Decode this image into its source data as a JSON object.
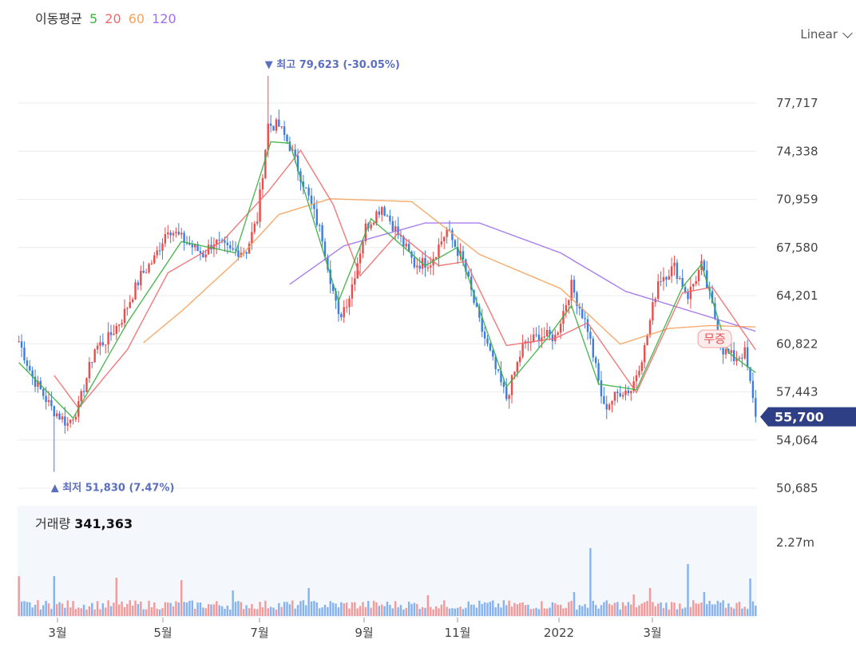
{
  "legend": {
    "title": "이동평균",
    "ma5": "5",
    "ma20": "20",
    "ma60": "60",
    "ma120": "120",
    "colors": {
      "ma5": "#3cb043",
      "ma20": "#f06a6a",
      "ma60": "#f5a25d",
      "ma120": "#a070ee"
    }
  },
  "scale_select": {
    "label": "Linear",
    "icon": "chevron-down-icon"
  },
  "volume_panel": {
    "label": "거래량",
    "value": "341,363",
    "ytick": "2.27m"
  },
  "chart_data": {
    "type": "candlestick",
    "ylim": [
      50685,
      79623
    ],
    "yticks": [
      "77,717",
      "74,338",
      "70,959",
      "67,580",
      "64,201",
      "60,822",
      "57,443",
      "54,064",
      "50,685"
    ],
    "ytick_values": [
      77717,
      74338,
      70959,
      67580,
      64201,
      60822,
      57443,
      54064,
      50685
    ],
    "xticks": [
      "3월",
      "5월",
      "7월",
      "9월",
      "11월",
      "2022",
      "3월"
    ],
    "high_annotation": {
      "label": "▼ 최고 79,623 (-30.05%)",
      "value": 79623
    },
    "low_annotation": {
      "label": "▲ 최저 51,830 (7.47%)",
      "value": 51830
    },
    "current_price": {
      "label": "55,700",
      "value": 55700
    },
    "event_badge": "무증",
    "close_keypoints": [
      [
        0,
        61000
      ],
      [
        5,
        58500
      ],
      [
        12,
        56300
      ],
      [
        18,
        55200
      ],
      [
        22,
        56400
      ],
      [
        28,
        60500
      ],
      [
        33,
        61200
      ],
      [
        38,
        62600
      ],
      [
        45,
        65600
      ],
      [
        50,
        66800
      ],
      [
        55,
        69000
      ],
      [
        60,
        68200
      ],
      [
        68,
        67100
      ],
      [
        72,
        68000
      ],
      [
        78,
        67300
      ],
      [
        84,
        67400
      ],
      [
        88,
        69600
      ],
      [
        92,
        76200
      ],
      [
        96,
        76100
      ],
      [
        100,
        74700
      ],
      [
        106,
        71600
      ],
      [
        112,
        68300
      ],
      [
        118,
        62600
      ],
      [
        122,
        64200
      ],
      [
        128,
        69000
      ],
      [
        134,
        70500
      ],
      [
        140,
        68500
      ],
      [
        146,
        66400
      ],
      [
        152,
        66600
      ],
      [
        158,
        68800
      ],
      [
        164,
        66600
      ],
      [
        170,
        62300
      ],
      [
        176,
        59000
      ],
      [
        180,
        57000
      ],
      [
        186,
        60600
      ],
      [
        192,
        61400
      ],
      [
        198,
        61300
      ],
      [
        204,
        64900
      ],
      [
        210,
        61900
      ],
      [
        216,
        56300
      ],
      [
        222,
        57500
      ],
      [
        226,
        57600
      ],
      [
        231,
        60500
      ],
      [
        236,
        65300
      ],
      [
        242,
        66200
      ],
      [
        247,
        64200
      ],
      [
        252,
        66300
      ],
      [
        256,
        63400
      ],
      [
        260,
        60400
      ],
      [
        264,
        59800
      ],
      [
        268,
        60200
      ],
      [
        272,
        55700
      ]
    ],
    "ma_lines": {
      "ma5": [
        [
          0,
          59500
        ],
        [
          20,
          55600
        ],
        [
          40,
          62300
        ],
        [
          60,
          68000
        ],
        [
          80,
          67200
        ],
        [
          93,
          75000
        ],
        [
          100,
          74900
        ],
        [
          118,
          63800
        ],
        [
          130,
          69600
        ],
        [
          150,
          66300
        ],
        [
          162,
          67600
        ],
        [
          180,
          57800
        ],
        [
          195,
          61200
        ],
        [
          204,
          63500
        ],
        [
          214,
          58000
        ],
        [
          228,
          57600
        ],
        [
          245,
          64800
        ],
        [
          252,
          66400
        ],
        [
          262,
          60200
        ],
        [
          272,
          58800
        ]
      ],
      "ma20": [
        [
          13,
          58600
        ],
        [
          22,
          56300
        ],
        [
          40,
          60400
        ],
        [
          55,
          65800
        ],
        [
          75,
          68000
        ],
        [
          92,
          71500
        ],
        [
          104,
          74400
        ],
        [
          116,
          70600
        ],
        [
          126,
          65600
        ],
        [
          140,
          68600
        ],
        [
          155,
          66300
        ],
        [
          165,
          66600
        ],
        [
          180,
          60700
        ],
        [
          198,
          61200
        ],
        [
          210,
          62300
        ],
        [
          228,
          57400
        ],
        [
          245,
          64400
        ],
        [
          256,
          64800
        ],
        [
          272,
          60400
        ]
      ],
      "ma60": [
        [
          46,
          60900
        ],
        [
          60,
          63100
        ],
        [
          80,
          66600
        ],
        [
          96,
          69900
        ],
        [
          115,
          71000
        ],
        [
          145,
          70800
        ],
        [
          170,
          67100
        ],
        [
          200,
          64700
        ],
        [
          222,
          60800
        ],
        [
          240,
          61900
        ],
        [
          255,
          62100
        ],
        [
          272,
          62000
        ]
      ],
      "ma120": [
        [
          100,
          65000
        ],
        [
          120,
          67700
        ],
        [
          150,
          69300
        ],
        [
          170,
          69300
        ],
        [
          200,
          67200
        ],
        [
          224,
          64500
        ],
        [
          250,
          63000
        ],
        [
          272,
          61700
        ]
      ]
    },
    "volume_spikes": [
      [
        0,
        0.5
      ],
      [
        13,
        0.5
      ],
      [
        36,
        0.48
      ],
      [
        60,
        0.45
      ],
      [
        79,
        0.32
      ],
      [
        107,
        0.35
      ],
      [
        151,
        0.26
      ],
      [
        205,
        0.3
      ],
      [
        211,
        0.85
      ],
      [
        227,
        0.27
      ],
      [
        233,
        0.35
      ],
      [
        247,
        0.65
      ],
      [
        253,
        0.3
      ],
      [
        270,
        0.47
      ]
    ],
    "volume_ylim": [
      0,
      2270000
    ]
  }
}
